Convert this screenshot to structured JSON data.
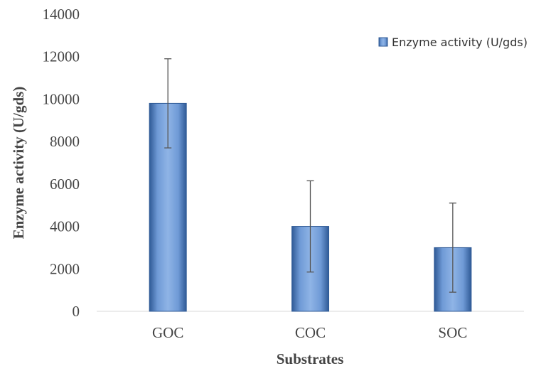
{
  "chart_data": {
    "type": "bar",
    "categories": [
      "GOC",
      "COC",
      "SOC"
    ],
    "series": [
      {
        "name": "Enzyme activity (U/gds)",
        "values": [
          9800,
          4000,
          3000
        ],
        "error": [
          2100,
          2150,
          2100
        ]
      }
    ],
    "xlabel": "Substrates",
    "ylabel": "Enzyme activity (U/gds)",
    "ylim": [
      0,
      14000
    ],
    "yticks": [
      "0",
      "2000",
      "4000",
      "6000",
      "8000",
      "10000",
      "12000",
      "14000"
    ],
    "grid": false,
    "legend_position": "top-right",
    "colors": {
      "bar_light": "#8fb4e6",
      "bar_mid": "#4f81bd",
      "bar_dark": "#2f5a96",
      "error_bar": "#555555",
      "axis": "#d9d9d9"
    }
  }
}
